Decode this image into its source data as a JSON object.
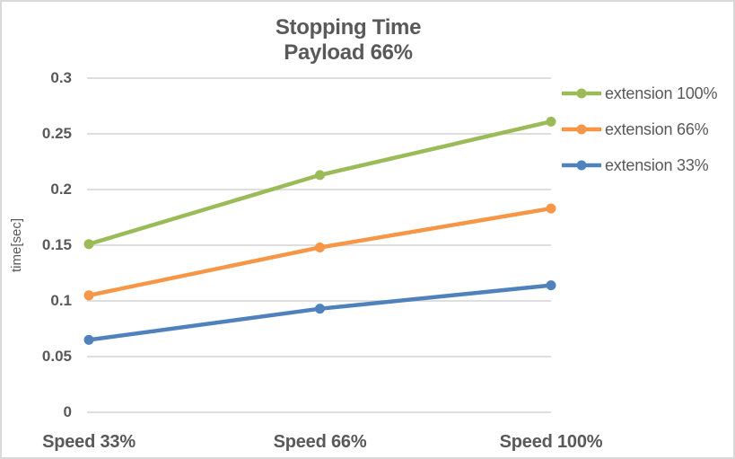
{
  "chart": {
    "title_line1": "Stopping Time",
    "title_line2": "Payload 66%",
    "y_axis_title": "time[sec]"
  },
  "colors": {
    "text": "#595959",
    "gridline": "#d9d9d9",
    "border": "#d9d9d9",
    "background": "#ffffff"
  },
  "chart_data": {
    "type": "line",
    "title": "Stopping Time",
    "subtitle": "Payload 66%",
    "categories": [
      "Speed 33%",
      "Speed 66%",
      "Speed 100%"
    ],
    "series": [
      {
        "name": "extension 100%",
        "color": "#9bbb59",
        "values": [
          0.151,
          0.213,
          0.261
        ]
      },
      {
        "name": "extension 66%",
        "color": "#f79646",
        "values": [
          0.105,
          0.148,
          0.183
        ]
      },
      {
        "name": "extension 33%",
        "color": "#4f81bd",
        "values": [
          0.065,
          0.093,
          0.114
        ]
      }
    ],
    "xlabel": "",
    "ylabel": "time[sec]",
    "ylim": [
      0,
      0.3
    ],
    "ytick_interval": 0.05,
    "ytick_labels": [
      "0",
      "0.05",
      "0.1",
      "0.15",
      "0.2",
      "0.25",
      "0.3"
    ],
    "grid": "horizontal-only",
    "legend_position": "right",
    "marker": "circle",
    "line_width": 4.5,
    "marker_radius": 5.5
  }
}
